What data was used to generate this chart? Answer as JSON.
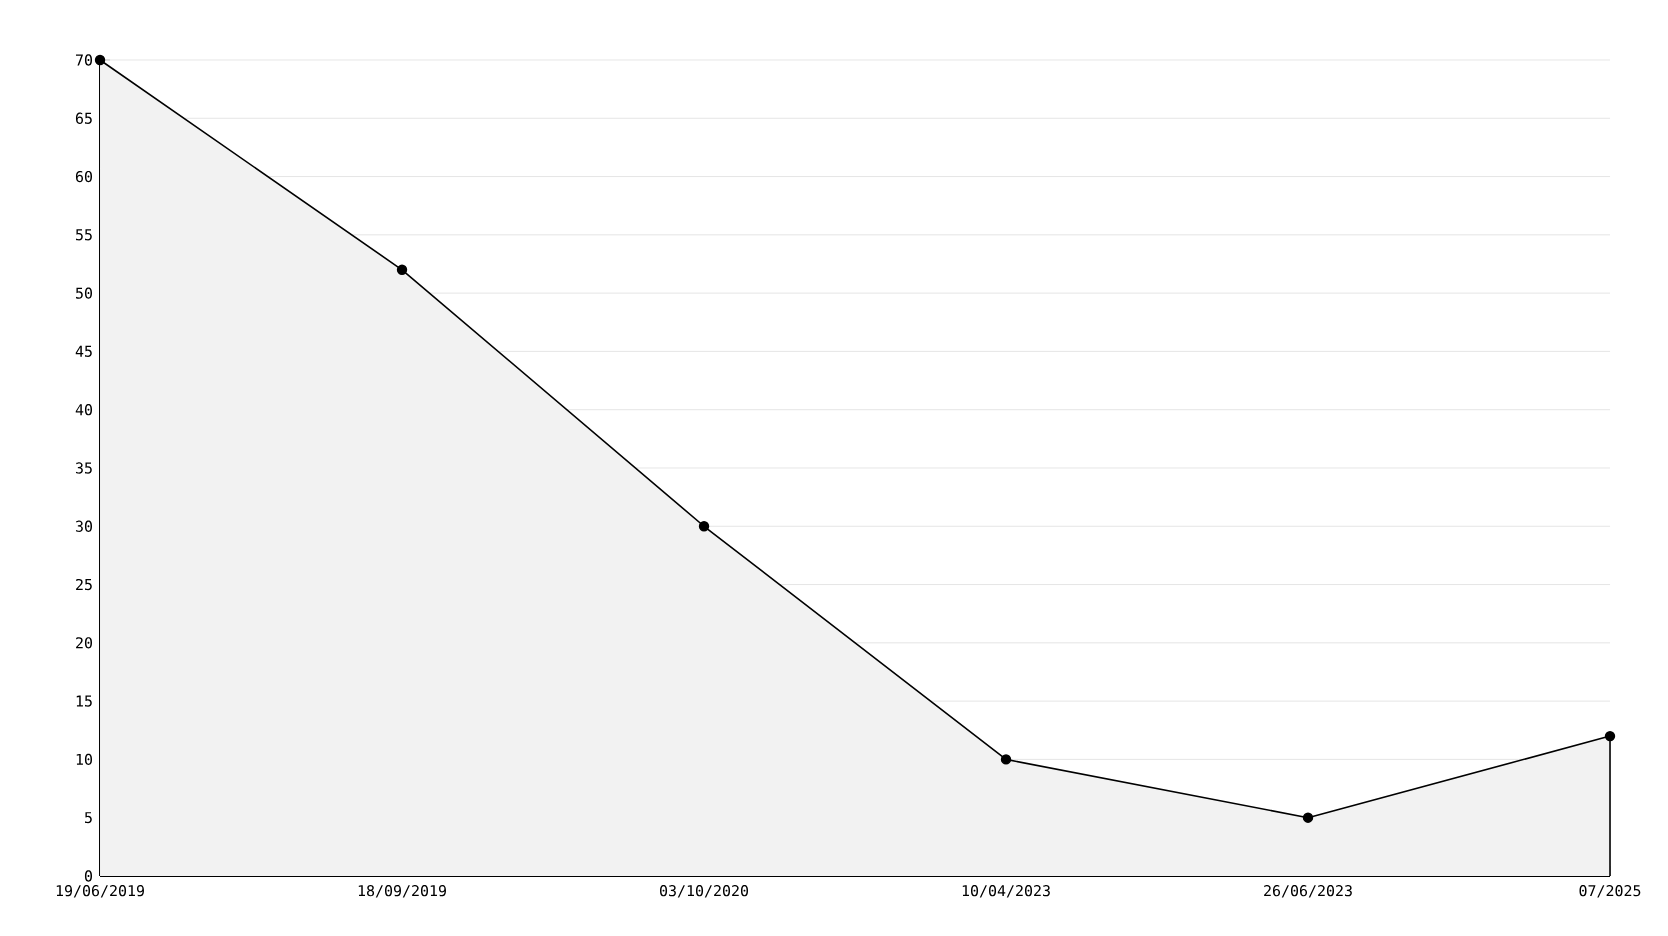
{
  "chart_data": {
    "type": "area",
    "categories": [
      "19/06/2019",
      "18/09/2019",
      "03/10/2020",
      "10/04/2023",
      "26/06/2023",
      "07/2025"
    ],
    "series": [
      {
        "color": "#000000",
        "values": [
          70,
          52,
          30,
          10,
          5,
          12
        ]
      }
    ],
    "ylim": [
      0,
      70
    ],
    "yticks": [
      0,
      5,
      10,
      15,
      20,
      25,
      30,
      35,
      40,
      45,
      50,
      55,
      60,
      65,
      70
    ],
    "grid": "y",
    "marker": "circle",
    "line_style": "solid"
  }
}
